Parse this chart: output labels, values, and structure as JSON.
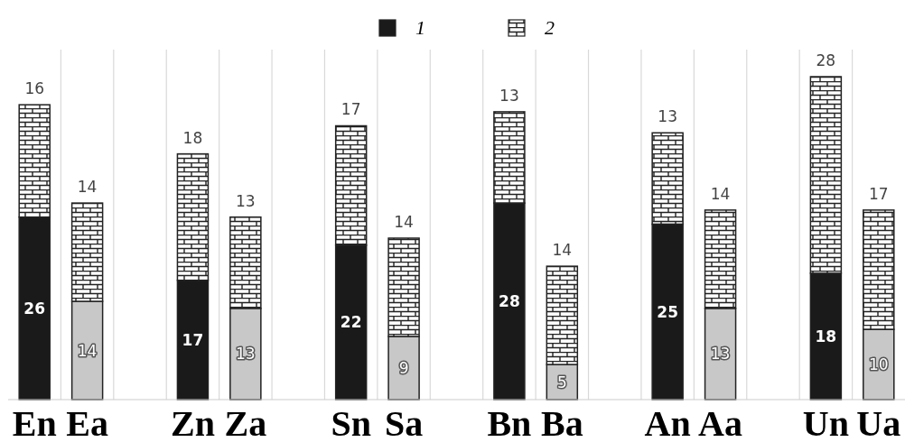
{
  "chart_data": {
    "type": "bar",
    "stacked": true,
    "data_labels": true,
    "grid": "x",
    "legend": "top",
    "categories": [
      "En",
      "Ea",
      null,
      "Zn",
      "Za",
      null,
      "Sn",
      "Sa",
      null,
      "Bn",
      "Ba",
      null,
      "An",
      "Aa",
      null,
      "Un",
      "Ua"
    ],
    "series": [
      {
        "name": "1",
        "colors": [
          "#1a1a1a",
          "#c8c8c8",
          null,
          "#1a1a1a",
          "#c8c8c8",
          null,
          "#1a1a1a",
          "#c8c8c8",
          null,
          "#1a1a1a",
          "#c8c8c8",
          null,
          "#1a1a1a",
          "#c8c8c8",
          null,
          "#1a1a1a",
          "#c8c8c8"
        ],
        "color": "#1a1a1a",
        "values": [
          26,
          14,
          null,
          17,
          13,
          null,
          22,
          9,
          null,
          28,
          5,
          null,
          25,
          13,
          null,
          18,
          10
        ]
      },
      {
        "name": "2",
        "color": "#222222",
        "values": [
          16,
          14,
          null,
          18,
          13,
          null,
          17,
          14,
          null,
          13,
          14,
          null,
          13,
          14,
          null,
          28,
          17
        ]
      }
    ]
  }
}
